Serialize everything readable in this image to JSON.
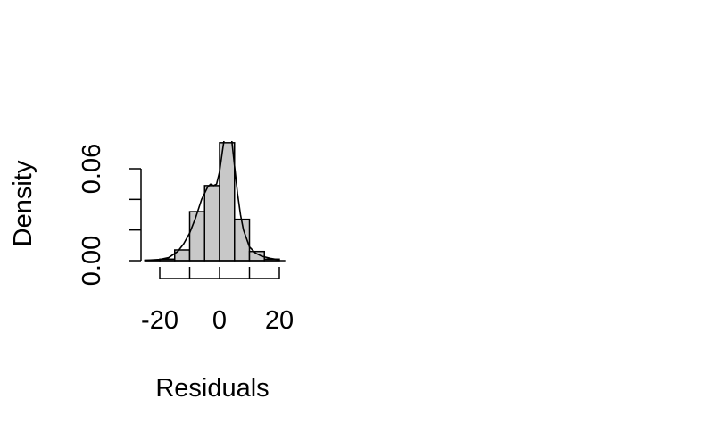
{
  "chart_data": {
    "type": "bar",
    "title": "",
    "xlabel": "Residuals",
    "ylabel": "Density",
    "xlim": [
      -25,
      20
    ],
    "ylim": [
      0,
      0.08
    ],
    "x_ticks": [
      -20,
      -10,
      0,
      10,
      20
    ],
    "x_tick_labels": [
      "-20",
      "",
      "0",
      "",
      "20"
    ],
    "y_ticks": [
      0,
      0.02,
      0.04,
      0.06
    ],
    "y_tick_labels": [
      "0.00",
      "",
      "",
      "0.06"
    ],
    "bin_edges": [
      -25,
      -20,
      -15,
      -10,
      -5,
      0,
      5,
      10,
      15,
      20
    ],
    "values": [
      0.0003,
      0.001,
      0.007,
      0.032,
      0.049,
      0.077,
      0.027,
      0.006,
      0.001
    ],
    "bar_color": "#c8c8c8",
    "density_curve": {
      "x": [
        -25,
        -20,
        -17,
        -14,
        -12,
        -10,
        -8,
        -6,
        -4,
        -3,
        -2,
        -1,
        0,
        1,
        2,
        3,
        4,
        5,
        6,
        7,
        8,
        10,
        12,
        14,
        17,
        20
      ],
      "y": [
        0.0002,
        0.0008,
        0.002,
        0.006,
        0.011,
        0.018,
        0.028,
        0.04,
        0.048,
        0.05,
        0.049,
        0.05,
        0.058,
        0.072,
        0.085,
        0.088,
        0.08,
        0.062,
        0.044,
        0.03,
        0.02,
        0.009,
        0.005,
        0.003,
        0.0015,
        0.0005
      ]
    },
    "grid": false,
    "legend": "none"
  }
}
